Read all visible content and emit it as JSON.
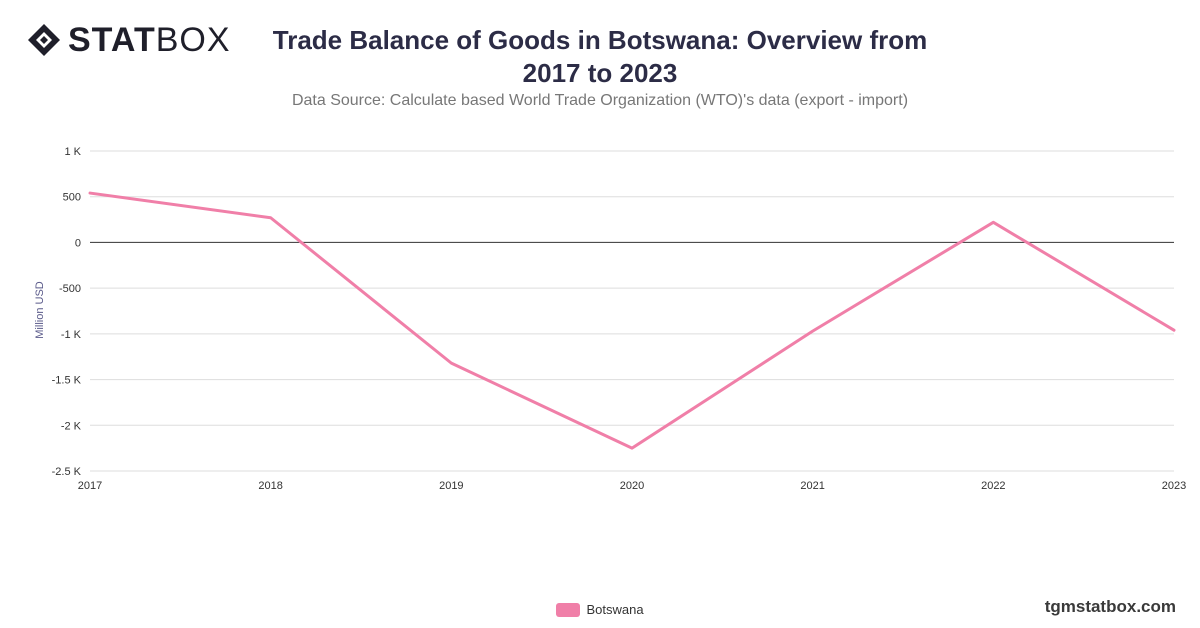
{
  "header": {
    "logo_bold": "STAT",
    "logo_light": "BOX",
    "logo_icon": "statbox-diamond-icon",
    "title_line1": "Trade Balance of Goods in Botswana: Overview from",
    "title_line2": "2017 to 2023",
    "subtitle": "Data Source: Calculate based World Trade Organization (WTO)'s data (export - import)"
  },
  "footer": {
    "credit": "tgmstatbox.com"
  },
  "chart_data": {
    "type": "line",
    "title": "Trade Balance of Goods in Botswana: Overview from 2017 to 2023",
    "subtitle": "Data Source: Calculate based World Trade Organization (WTO)'s data (export - import)",
    "xlabel": "",
    "ylabel": "Million USD",
    "x": [
      "2017",
      "2018",
      "2019",
      "2020",
      "2021",
      "2022",
      "2023"
    ],
    "ylim": [
      -2500,
      1000
    ],
    "yticks": [
      1000,
      500,
      0,
      -500,
      -1000,
      -1500,
      -2000,
      -2500
    ],
    "ytick_labels": [
      "1 K",
      "500",
      "0",
      "-500",
      "-1 K",
      "-1.5 K",
      "-2 K",
      "-2.5 K"
    ],
    "grid": true,
    "legend_position": "bottom-center",
    "series": [
      {
        "name": "Botswana",
        "color": "#f07fa8",
        "values": [
          540,
          270,
          -1320,
          -2250,
          -970,
          220,
          -960
        ]
      }
    ]
  }
}
